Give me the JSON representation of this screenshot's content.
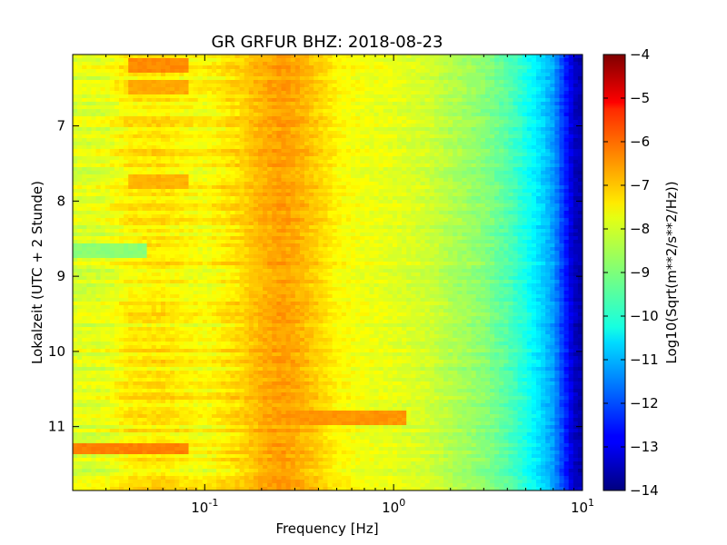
{
  "chart_data": {
    "type": "heatmap",
    "title": "GR GRFUR BHZ: 2018-08-23",
    "xlabel": "Frequency [Hz]",
    "ylabel": "Lokalzeit (UTC + 2 Stunde)",
    "x_scale": "log",
    "xlim": [
      0.02,
      10
    ],
    "ylim": [
      6.05,
      11.85
    ],
    "y_inverted": true,
    "x_ticks": [
      0.1,
      1,
      10
    ],
    "x_tick_labels": [
      {
        "base": "10",
        "exp": "-1"
      },
      {
        "base": "10",
        "exp": "0"
      },
      {
        "base": "10",
        "exp": "1"
      }
    ],
    "y_ticks": [
      7,
      8,
      9,
      10,
      11
    ],
    "y_tick_labels": [
      "7",
      "8",
      "9",
      "10",
      "11"
    ],
    "colormap": "jet",
    "colorbar": {
      "label": "Log10(Sqrt(m**2/s**2/Hz))",
      "range": [
        -14,
        -4
      ],
      "ticks": [
        -4,
        -5,
        -6,
        -7,
        -8,
        -9,
        -10,
        -11,
        -12,
        -13,
        -14
      ],
      "tick_labels": [
        "−4",
        "−5",
        "−6",
        "−7",
        "−8",
        "−9",
        "−10",
        "−11",
        "−12",
        "−13",
        "−14"
      ]
    },
    "spectrum_profile": {
      "frequency_hz": [
        0.02,
        0.03,
        0.04,
        0.06,
        0.08,
        0.1,
        0.15,
        0.2,
        0.25,
        0.3,
        0.4,
        0.5,
        0.7,
        1.0,
        1.5,
        2.0,
        3.0,
        4.0,
        5.0,
        6.0,
        7.0,
        8.0,
        9.0,
        10.0
      ],
      "level_log10": [
        -8.1,
        -8.0,
        -7.6,
        -7.5,
        -7.7,
        -7.8,
        -7.4,
        -7.0,
        -6.8,
        -6.9,
        -7.3,
        -7.7,
        -7.9,
        -8.0,
        -8.2,
        -8.5,
        -8.9,
        -9.4,
        -10.0,
        -10.6,
        -11.2,
        -12.3,
        -13.3,
        -13.6
      ]
    },
    "time_features": [
      {
        "time": 6.2,
        "freq_range": [
          0.04,
          0.08
        ],
        "level_log10": -6.6
      },
      {
        "time": 6.5,
        "freq_range": [
          0.04,
          0.08
        ],
        "level_log10": -6.9
      },
      {
        "time": 7.75,
        "freq_range": [
          0.04,
          0.08
        ],
        "level_log10": -7.0
      },
      {
        "time": 8.65,
        "freq_range": [
          0.02,
          0.05
        ],
        "level_log10": -8.9
      },
      {
        "time": 10.9,
        "freq_range": [
          0.3,
          1.2
        ],
        "level_log10": -6.7
      },
      {
        "time": 11.3,
        "freq_range": [
          0.02,
          0.08
        ],
        "level_log10": -6.5
      }
    ]
  }
}
